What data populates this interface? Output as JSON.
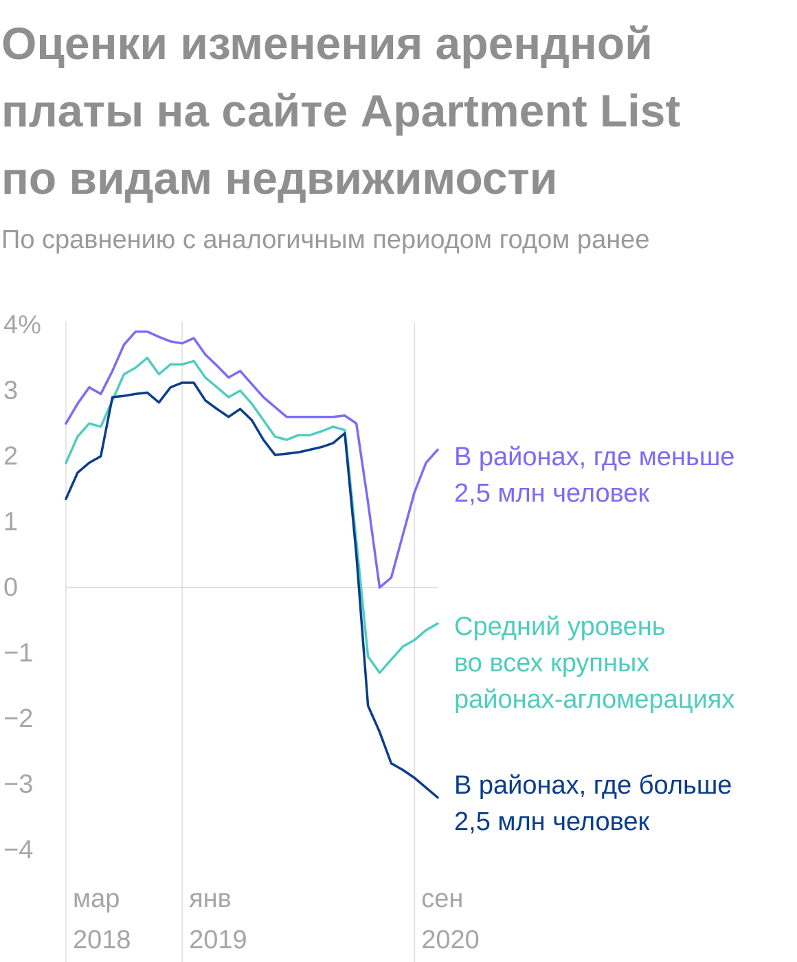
{
  "title_lines": [
    "Оценки изменения арендной",
    "платы на сайте Apartment List",
    "по видам недвижимости"
  ],
  "subtitle": "По сравнению с аналогичным периодом годом ранее",
  "chart_data": {
    "type": "line",
    "title": "Оценки изменения арендной платы на сайте Apartment List по видам недвижимости",
    "subtitle": "По сравнению с аналогичным периодом годом ранее",
    "ylim": [
      -4,
      4
    ],
    "y_ticks": [
      "4%",
      "3",
      "2",
      "1",
      "0",
      "−1",
      "−2",
      "−3",
      "−4"
    ],
    "y_tick_values": [
      4,
      3,
      2,
      1,
      0,
      -1,
      -2,
      -3,
      -4
    ],
    "x_ticks": [
      {
        "month": "мар",
        "year": "2018",
        "index": 0
      },
      {
        "month": "янв",
        "year": "2019",
        "index": 10
      },
      {
        "month": "сен",
        "year": "2020",
        "index": 30
      }
    ],
    "x_range": [
      0,
      32
    ],
    "x_start": "2018-03",
    "grid": "zero line and vertical lines at labeled months",
    "series": [
      {
        "name": "В районах, где меньше 2,5 млн человек",
        "label_lines": [
          "В районах, где меньше",
          "2,5 млн человек"
        ],
        "color": "#7b6cf6",
        "values": [
          2.5,
          2.8,
          3.05,
          2.95,
          3.3,
          3.7,
          3.9,
          3.9,
          3.82,
          3.75,
          3.72,
          3.8,
          3.55,
          3.38,
          3.2,
          3.3,
          3.1,
          2.9,
          2.75,
          2.6,
          2.6,
          2.6,
          2.6,
          2.6,
          2.62,
          2.5,
          1.3,
          0.0,
          0.15,
          0.8,
          1.45,
          1.9,
          2.1
        ]
      },
      {
        "name": "Средний уровень во всех крупных районах-агломерациях",
        "label_lines": [
          "Средний уровень",
          "во всех крупных",
          "районах-агломерациях"
        ],
        "color": "#4ecdbe",
        "values": [
          1.9,
          2.3,
          2.5,
          2.45,
          2.85,
          3.25,
          3.35,
          3.5,
          3.25,
          3.4,
          3.4,
          3.45,
          3.2,
          3.05,
          2.9,
          3.0,
          2.8,
          2.55,
          2.3,
          2.25,
          2.32,
          2.32,
          2.38,
          2.45,
          2.4,
          0.7,
          -1.05,
          -1.3,
          -1.1,
          -0.9,
          -0.8,
          -0.65,
          -0.55
        ]
      },
      {
        "name": "В районах, где больше 2,5 млн человек",
        "label_lines": [
          "В районах, где больше",
          "2,5 млн человек"
        ],
        "color": "#0b3d8c",
        "values": [
          1.35,
          1.75,
          1.9,
          2.0,
          2.9,
          2.92,
          2.95,
          2.97,
          2.82,
          3.05,
          3.12,
          3.12,
          2.85,
          2.72,
          2.6,
          2.72,
          2.55,
          2.25,
          2.02,
          2.04,
          2.06,
          2.1,
          2.14,
          2.2,
          2.35,
          0.5,
          -1.8,
          -2.2,
          -2.68,
          -2.78,
          -2.9,
          -3.05,
          -3.2
        ]
      }
    ]
  }
}
